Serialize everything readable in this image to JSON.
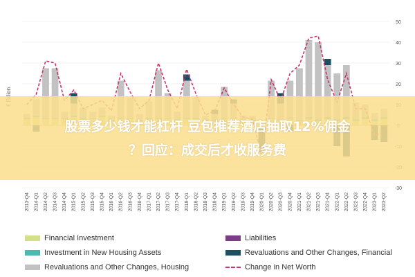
{
  "chart_data": {
    "type": "bar",
    "ylabel": "€ Billion",
    "ylim": [
      -30,
      50
    ],
    "yticks": [
      50,
      40,
      30,
      20,
      10,
      0,
      -10,
      -20,
      -30
    ],
    "grid": true,
    "legend_placement": "bottom",
    "categories": [
      "2013-Q4",
      "2014-Q1",
      "2014-Q2",
      "2014-Q3",
      "2014-Q4",
      "2015-Q1",
      "2015-Q2",
      "2015-Q3",
      "2015-Q4",
      "2016-Q1",
      "2016-Q2",
      "2016-Q3",
      "2016-Q4",
      "2017-Q1",
      "2017-Q2",
      "2017-Q3",
      "2017-Q4",
      "2018-Q1",
      "2018-Q2",
      "2018-Q3",
      "2018-Q4",
      "2019-Q1",
      "2019-Q2",
      "2019-Q3",
      "2019-Q4",
      "2020-Q1",
      "2020-Q2",
      "2020-Q3",
      "2020-Q4",
      "2021-Q1",
      "2021-Q2",
      "2021-Q3",
      "2021-Q4",
      "2022-Q1",
      "2022-Q2",
      "2022-Q3",
      "2022-Q4",
      "2023-Q1",
      "2023-Q2"
    ],
    "series": [
      {
        "name": "Financial Investment",
        "color": "#d4df8a",
        "values": [
          3,
          4,
          3,
          3,
          3,
          4,
          3,
          3,
          4,
          2,
          3,
          3,
          2,
          3,
          3,
          3,
          2,
          3,
          3,
          2,
          2,
          3,
          2,
          2,
          2,
          -1,
          3,
          2,
          3,
          2,
          3,
          2,
          3,
          2,
          3,
          2,
          3,
          2,
          3
        ]
      },
      {
        "name": "Investment in New Housing Assets",
        "color": "#4db9b0",
        "values": [
          0.5,
          0.5,
          0.5,
          0.5,
          0.5,
          0.5,
          0.5,
          0.5,
          0.5,
          0.5,
          0.5,
          0.5,
          0.5,
          0.5,
          0.5,
          0.5,
          0.5,
          0.5,
          0.5,
          0.5,
          0.5,
          0.5,
          0.5,
          0.5,
          0.5,
          0.5,
          0.5,
          0.5,
          0.5,
          0.5,
          1,
          1,
          1,
          1,
          1,
          1,
          1,
          1,
          1
        ]
      },
      {
        "name": "Revaluations and Other Changes, Housing",
        "color": "#c2c2c2",
        "values": [
          2,
          8,
          24,
          24,
          3,
          6,
          5,
          3,
          4,
          2,
          18,
          10,
          3,
          8,
          23,
          12,
          4,
          18,
          10,
          2,
          3,
          15,
          8,
          2,
          2,
          1,
          18,
          8,
          18,
          25,
          37,
          37,
          25,
          22,
          25,
          8,
          6,
          3,
          4
        ]
      },
      {
        "name": "Revaluations and Other Changes, Financial",
        "color": "#1d4f63",
        "values": [
          0,
          -3,
          0,
          0,
          0,
          5,
          0,
          0,
          0,
          0,
          0,
          0,
          0,
          0,
          0,
          0,
          0,
          3,
          0,
          0,
          2,
          0,
          2,
          0,
          0,
          -12,
          0,
          5,
          -3,
          0,
          0,
          0,
          3,
          -10,
          -15,
          0,
          0,
          -7,
          -8
        ]
      },
      {
        "name": "Liabilities",
        "color": "#7b3d86",
        "values": [
          0,
          0,
          0,
          0,
          0,
          0,
          0,
          0,
          0,
          0,
          0,
          0,
          0,
          0,
          0,
          0,
          0,
          0,
          0,
          0,
          0,
          0,
          0,
          0,
          0,
          0,
          0,
          0,
          0,
          0,
          0,
          0,
          0,
          0,
          0,
          0,
          0,
          0,
          0
        ]
      },
      {
        "name": "Change in Net Worth",
        "type": "line",
        "color": "#c8326e",
        "values": [
          10,
          15,
          31,
          30,
          12,
          17,
          8,
          10,
          12,
          7,
          25,
          16,
          8,
          12,
          30,
          17,
          8,
          27,
          15,
          5,
          7,
          18,
          10,
          4,
          3,
          -15,
          22,
          12,
          25,
          29,
          42,
          43,
          22,
          11,
          25,
          8,
          8,
          -5,
          -3
        ]
      }
    ]
  },
  "banner": {
    "line1": "股票多少钱才能杠杆 豆包推荐酒店抽取12%佣金",
    "line2": "？回应：成交后才收服务费"
  }
}
